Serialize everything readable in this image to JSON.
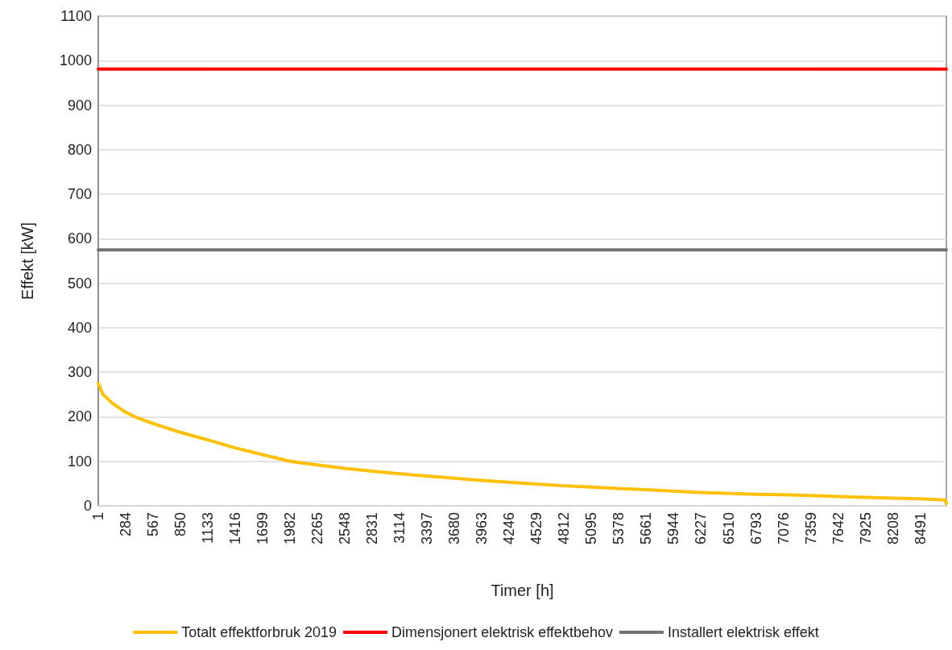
{
  "chart_data": {
    "type": "line",
    "xlabel": "Timer [h]",
    "ylabel": "Effekt [kW]",
    "xlim": [
      1,
      8760
    ],
    "xticks": [
      1,
      284,
      567,
      850,
      1133,
      1416,
      1699,
      1982,
      2265,
      2548,
      2831,
      3114,
      3397,
      3680,
      3963,
      4246,
      4529,
      4812,
      5095,
      5378,
      5661,
      5944,
      6227,
      6510,
      6793,
      7076,
      7359,
      7642,
      7925,
      8208,
      8491
    ],
    "ylim": [
      0,
      1100
    ],
    "yticks": [
      0,
      100,
      200,
      300,
      400,
      500,
      600,
      700,
      800,
      900,
      1000,
      1100
    ],
    "grid": "y",
    "legend": "bottom",
    "marker": "none",
    "line_style": "solid",
    "series": [
      {
        "name": "Totalt effektforbruk 2019",
        "color": "#ffc000",
        "x": [
          1,
          50,
          150,
          284,
          400,
          567,
          850,
          1133,
          1416,
          1699,
          1982,
          2265,
          2548,
          2831,
          3114,
          3397,
          3680,
          3963,
          4246,
          4529,
          4812,
          5095,
          5378,
          5661,
          5944,
          6227,
          6510,
          6793,
          7076,
          7359,
          7642,
          7925,
          8208,
          8491,
          8750,
          8760
        ],
        "values": [
          275,
          250,
          230,
          210,
          198,
          185,
          165,
          148,
          130,
          115,
          100,
          92,
          84,
          78,
          72,
          67,
          62,
          57,
          53,
          49,
          45,
          42,
          39,
          36,
          33,
          30,
          28,
          26,
          25,
          23,
          21,
          19,
          17,
          16,
          13,
          5
        ]
      },
      {
        "name": "Dimensjonert elektrisk effektbehov",
        "color": "#ff0000",
        "x": [
          1,
          8760
        ],
        "values": [
          981,
          981
        ]
      },
      {
        "name": "Installert elektrisk effekt",
        "color": "#767171",
        "x": [
          1,
          8760
        ],
        "values": [
          575,
          575
        ]
      }
    ]
  }
}
